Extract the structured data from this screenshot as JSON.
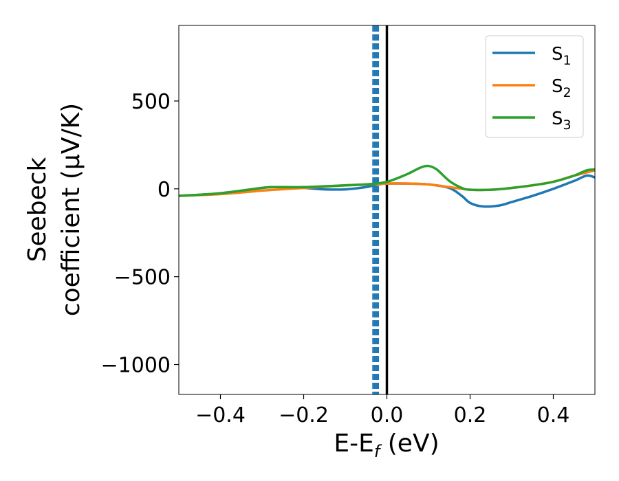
{
  "chart_data": {
    "type": "line",
    "xlabel": "E-E",
    "xlabel_sub": "f",
    "xlabel_unit": " (eV)",
    "ylabel_line1": "Seebeck",
    "ylabel_line2": "coefficient  (μV/K)",
    "xlim": [
      -0.5,
      0.5
    ],
    "ylim": [
      -1170,
      930
    ],
    "x_ticks": [
      -0.4,
      -0.2,
      0.0,
      0.2,
      0.4
    ],
    "x_tick_labels": [
      "−0.4",
      "−0.2",
      "0.0",
      "0.2",
      "0.4"
    ],
    "y_ticks": [
      -1000,
      -500,
      0,
      500
    ],
    "y_tick_labels": [
      "−1000",
      "−500",
      "0",
      "500"
    ],
    "grid": false,
    "legend_position": "top-right",
    "vertical_lines": [
      {
        "x": 0.0,
        "style": "solid",
        "color": "#000000"
      },
      {
        "x": -0.033,
        "style": "dashed",
        "color": "#1f77b4"
      },
      {
        "x": -0.029,
        "style": "dashed",
        "color": "#1f77b4"
      },
      {
        "x": -0.025,
        "style": "dashed",
        "color": "#1f77b4"
      },
      {
        "x": -0.021,
        "style": "dashed",
        "color": "#1f77b4"
      }
    ],
    "series": [
      {
        "name": "S",
        "name_sub": "1",
        "color": "#1f77b4",
        "x": [
          -0.5,
          -0.4,
          -0.3,
          -0.27,
          -0.2,
          -0.15,
          -0.1,
          -0.05,
          -0.02,
          0.0,
          0.05,
          0.1,
          0.15,
          0.18,
          0.2,
          0.23,
          0.27,
          0.3,
          0.35,
          0.4,
          0.45,
          0.48,
          0.5
        ],
        "y": [
          -40,
          -25,
          5,
          10,
          5,
          -3,
          -3,
          10,
          25,
          30,
          30,
          25,
          5,
          -40,
          -80,
          -100,
          -95,
          -75,
          -40,
          0,
          45,
          75,
          65
        ]
      },
      {
        "name": "S",
        "name_sub": "2",
        "color": "#ff7f0e",
        "x": [
          -0.5,
          -0.4,
          -0.3,
          -0.27,
          -0.2,
          -0.1,
          -0.05,
          0.0,
          0.05,
          0.1,
          0.15,
          0.2,
          0.25,
          0.3,
          0.35,
          0.4,
          0.45,
          0.5
        ],
        "y": [
          -40,
          -30,
          -10,
          -5,
          5,
          20,
          25,
          30,
          30,
          25,
          10,
          -5,
          -5,
          5,
          20,
          40,
          75,
          105
        ]
      },
      {
        "name": "S",
        "name_sub": "3",
        "color": "#2ca02c",
        "x": [
          -0.5,
          -0.4,
          -0.3,
          -0.27,
          -0.2,
          -0.1,
          -0.05,
          0.0,
          0.05,
          0.08,
          0.1,
          0.12,
          0.15,
          0.18,
          0.2,
          0.25,
          0.3,
          0.35,
          0.4,
          0.45,
          0.48,
          0.5
        ],
        "y": [
          -40,
          -25,
          5,
          10,
          10,
          20,
          25,
          40,
          85,
          120,
          130,
          110,
          45,
          5,
          -5,
          -5,
          5,
          20,
          40,
          75,
          105,
          110
        ]
      }
    ]
  }
}
